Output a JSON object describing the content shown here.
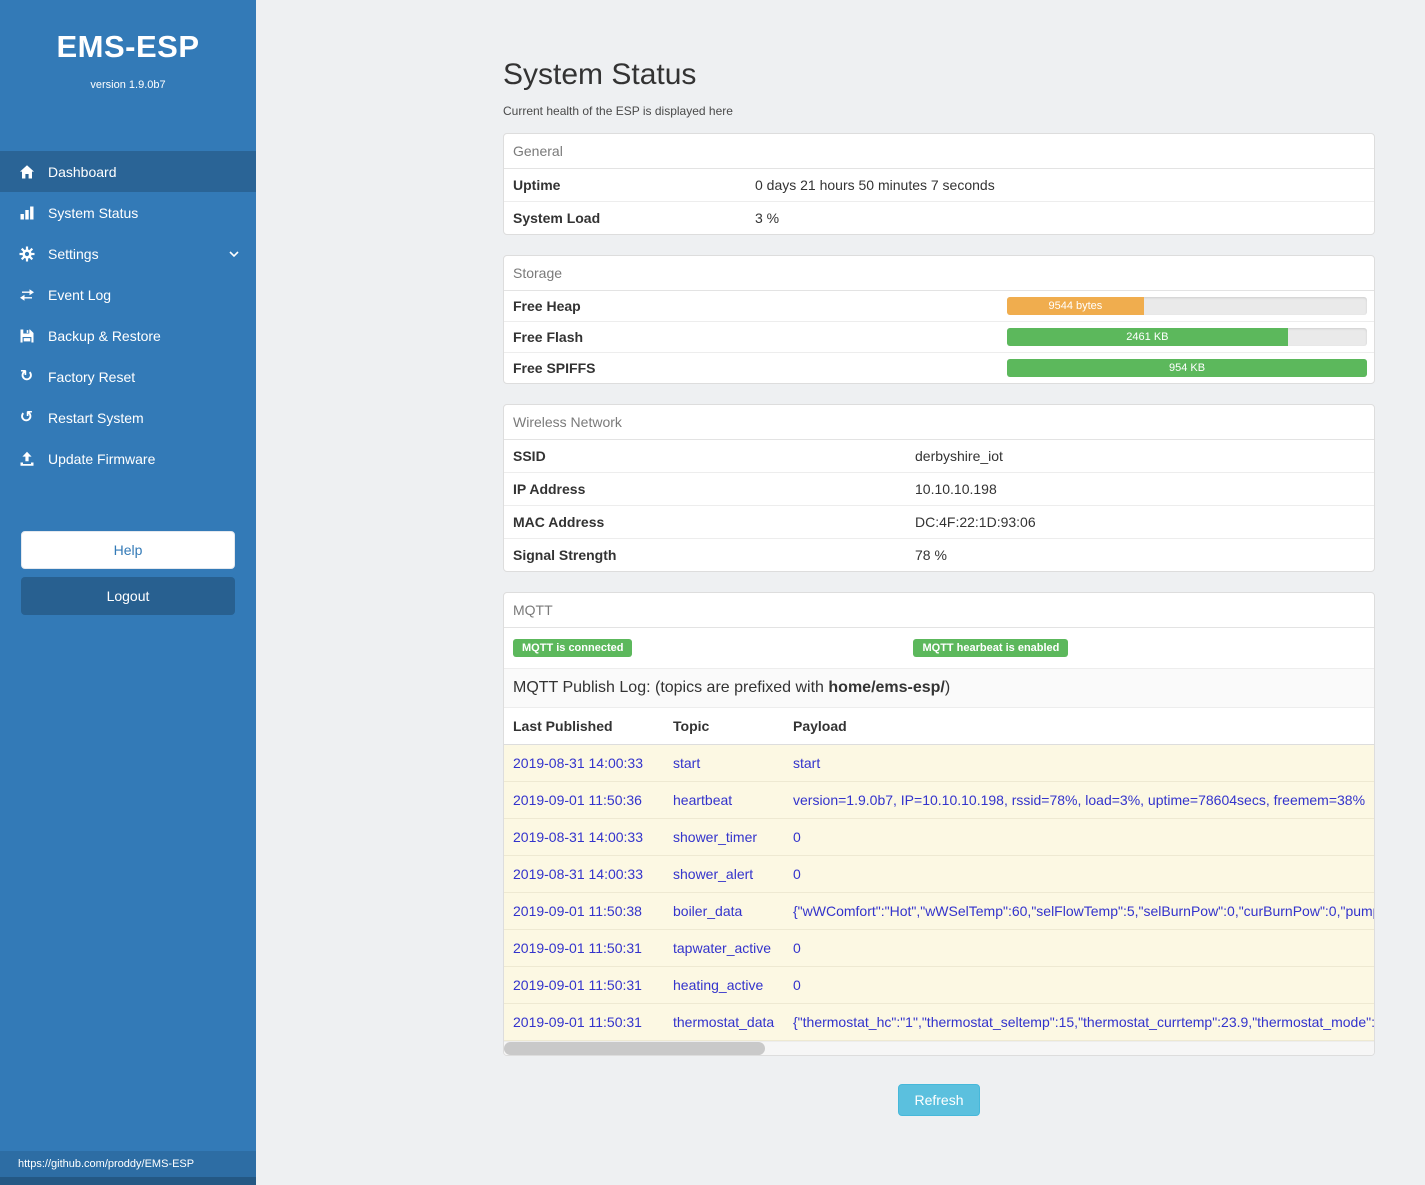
{
  "colors": {
    "sidebar": "#337ab7",
    "sidebar_active": "#2a6496",
    "badge_green": "#5cb85c",
    "refresh_button": "#5bc0de"
  },
  "sidebar": {
    "title": "EMS-ESP",
    "version": "version 1.9.0b7",
    "items": [
      {
        "label": "Dashboard"
      },
      {
        "label": "System Status"
      },
      {
        "label": "Settings"
      },
      {
        "label": "Event Log"
      },
      {
        "label": "Backup & Restore"
      },
      {
        "label": "Factory Reset"
      },
      {
        "label": "Restart System"
      },
      {
        "label": "Update Firmware"
      }
    ],
    "icons": {
      "factory_reset_glyph": "↻",
      "restart_glyph": "↺"
    },
    "help_label": "Help",
    "logout_label": "Logout",
    "footer_url": "https://github.com/proddy/EMS-ESP"
  },
  "page": {
    "title": "System Status",
    "subtitle": "Current health of the ESP is displayed here"
  },
  "general": {
    "title": "General",
    "rows": [
      {
        "label": "Uptime",
        "value": "0 days 21 hours 50 minutes 7 seconds"
      },
      {
        "label": "System Load",
        "value": "3 %"
      }
    ]
  },
  "storage": {
    "title": "Storage",
    "rows": [
      {
        "label": "Free Heap",
        "value": "9544 bytes",
        "percent": 38,
        "color": "#f0ad4e"
      },
      {
        "label": "Free Flash",
        "value": "2461 KB",
        "percent": 78,
        "color": "#5cb85c"
      },
      {
        "label": "Free SPIFFS",
        "value": "954 KB",
        "percent": 100,
        "color": "#5cb85c"
      }
    ]
  },
  "wireless": {
    "title": "Wireless Network",
    "rows": [
      {
        "label": "SSID",
        "value": "derbyshire_iot"
      },
      {
        "label": "IP Address",
        "value": "10.10.10.198"
      },
      {
        "label": "MAC Address",
        "value": "DC:4F:22:1D:93:06"
      },
      {
        "label": "Signal Strength",
        "value": "78 %"
      }
    ]
  },
  "mqtt": {
    "title": "MQTT",
    "badges": [
      "MQTT is connected",
      "MQTT hearbeat is enabled"
    ],
    "log_title_prefix": "MQTT Publish Log: (topics are prefixed with ",
    "log_topic_prefix": "home/ems-esp/",
    "log_title_suffix": ")",
    "columns": [
      "Last Published",
      "Topic",
      "Payload"
    ],
    "rows": [
      {
        "published": "2019-08-31 14:00:33",
        "topic": "start",
        "payload": "start"
      },
      {
        "published": "2019-09-01 11:50:36",
        "topic": "heartbeat",
        "payload": "version=1.9.0b7, IP=10.10.10.198, rssid=78%, load=3%, uptime=78604secs, freemem=38%"
      },
      {
        "published": "2019-08-31 14:00:33",
        "topic": "shower_timer",
        "payload": "0"
      },
      {
        "published": "2019-08-31 14:00:33",
        "topic": "shower_alert",
        "payload": "0"
      },
      {
        "published": "2019-09-01 11:50:38",
        "topic": "boiler_data",
        "payload": "{\"wWComfort\":\"Hot\",\"wWSelTemp\":60,\"selFlowTemp\":5,\"selBurnPow\":0,\"curBurnPow\":0,\"pump"
      },
      {
        "published": "2019-09-01 11:50:31",
        "topic": "tapwater_active",
        "payload": "0"
      },
      {
        "published": "2019-09-01 11:50:31",
        "topic": "heating_active",
        "payload": "0"
      },
      {
        "published": "2019-09-01 11:50:31",
        "topic": "thermostat_data",
        "payload": "{\"thermostat_hc\":\"1\",\"thermostat_seltemp\":15,\"thermostat_currtemp\":23.9,\"thermostat_mode\":\""
      }
    ]
  },
  "refresh_label": "Refresh"
}
